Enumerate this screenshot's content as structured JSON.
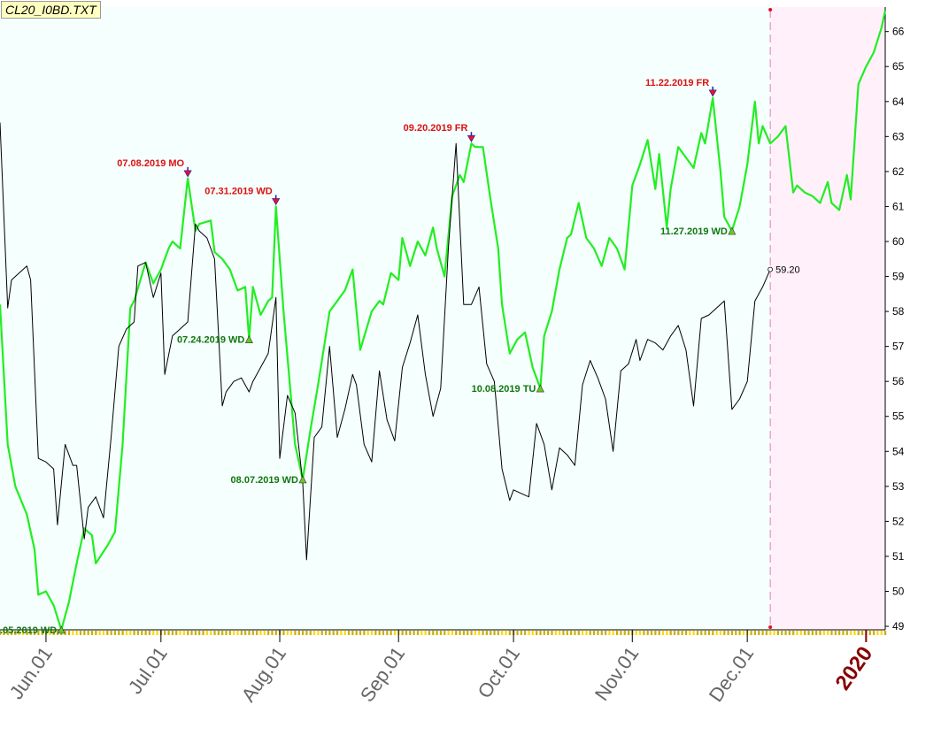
{
  "window": {
    "file_label": "CL20_I0BD.TXT"
  },
  "colors": {
    "plot_bg": "#f5fffd",
    "future_bg": "#fff0fa",
    "primary_line": "#22ee22",
    "secondary_line": "#000000",
    "high_marker": "#ee1122",
    "low_marker": "#66cc22",
    "high_label": "#dd1111",
    "low_label": "#117711",
    "year_label": "#880000"
  },
  "chart_data": {
    "type": "line",
    "y_axis": {
      "ylim": [
        48.9,
        66.7
      ],
      "ticks": [
        49,
        50,
        51,
        52,
        53,
        54,
        55,
        56,
        57,
        58,
        59,
        60,
        61,
        62,
        63,
        64,
        65,
        66
      ],
      "position": "right"
    },
    "x_axis": {
      "ticks": [
        "Jun.01",
        "Jul.01",
        "Aug.01",
        "Sep.01",
        "Oct.01",
        "Nov.01",
        "Dec.01",
        "2020"
      ],
      "tick_dates": [
        "2019-06-01",
        "2019-07-01",
        "2019-08-01",
        "2019-09-01",
        "2019-10-01",
        "2019-11-01",
        "2019-12-01",
        "2020-01-01"
      ],
      "highlight_tick": "2020"
    },
    "grid": false,
    "future_region_start": "2019-12-07",
    "series": [
      {
        "role": "primary",
        "points": [
          [
            "2019-05-20",
            58.2
          ],
          [
            "2019-05-22",
            54.2
          ],
          [
            "2019-05-24",
            53.0
          ],
          [
            "2019-05-27",
            52.2
          ],
          [
            "2019-05-29",
            51.2
          ],
          [
            "2019-05-30",
            49.9
          ],
          [
            "2019-06-01",
            50.0
          ],
          [
            "2019-06-03",
            49.6
          ],
          [
            "2019-06-05",
            48.9
          ],
          [
            "2019-06-07",
            49.7
          ],
          [
            "2019-06-09",
            50.8
          ],
          [
            "2019-06-11",
            51.8
          ],
          [
            "2019-06-13",
            51.6
          ],
          [
            "2019-06-14",
            50.8
          ],
          [
            "2019-06-17",
            51.3
          ],
          [
            "2019-06-19",
            51.7
          ],
          [
            "2019-06-21",
            54.2
          ],
          [
            "2019-06-23",
            58.1
          ],
          [
            "2019-06-24",
            58.3
          ],
          [
            "2019-06-27",
            59.4
          ],
          [
            "2019-06-29",
            58.8
          ],
          [
            "2019-07-01",
            59.2
          ],
          [
            "2019-07-03",
            59.8
          ],
          [
            "2019-07-04",
            60.0
          ],
          [
            "2019-07-06",
            59.8
          ],
          [
            "2019-07-08",
            61.8
          ],
          [
            "2019-07-10",
            60.3
          ],
          [
            "2019-07-11",
            60.5
          ],
          [
            "2019-07-14",
            60.6
          ],
          [
            "2019-07-15",
            59.7
          ],
          [
            "2019-07-17",
            59.5
          ],
          [
            "2019-07-19",
            59.2
          ],
          [
            "2019-07-21",
            58.6
          ],
          [
            "2019-07-23",
            58.7
          ],
          [
            "2019-07-24",
            57.2
          ],
          [
            "2019-07-25",
            58.7
          ],
          [
            "2019-07-27",
            57.9
          ],
          [
            "2019-07-29",
            58.3
          ],
          [
            "2019-07-30",
            58.4
          ],
          [
            "2019-07-31",
            61.0
          ],
          [
            "2019-08-02",
            58.0
          ],
          [
            "2019-08-05",
            54.2
          ],
          [
            "2019-08-07",
            53.2
          ],
          [
            "2019-08-09",
            54.6
          ],
          [
            "2019-08-11",
            55.9
          ],
          [
            "2019-08-13",
            57.3
          ],
          [
            "2019-08-14",
            58.0
          ],
          [
            "2019-08-16",
            58.3
          ],
          [
            "2019-08-18",
            58.6
          ],
          [
            "2019-08-20",
            59.2
          ],
          [
            "2019-08-22",
            56.9
          ],
          [
            "2019-08-25",
            58.0
          ],
          [
            "2019-08-27",
            58.3
          ],
          [
            "2019-08-28",
            58.2
          ],
          [
            "2019-08-30",
            59.1
          ],
          [
            "2019-09-01",
            58.9
          ],
          [
            "2019-09-02",
            60.1
          ],
          [
            "2019-09-04",
            59.3
          ],
          [
            "2019-09-06",
            60.0
          ],
          [
            "2019-09-08",
            59.6
          ],
          [
            "2019-09-10",
            60.4
          ],
          [
            "2019-09-11",
            59.8
          ],
          [
            "2019-09-13",
            59.0
          ],
          [
            "2019-09-15",
            61.3
          ],
          [
            "2019-09-17",
            61.9
          ],
          [
            "2019-09-18",
            61.7
          ],
          [
            "2019-09-20",
            62.8
          ],
          [
            "2019-09-21",
            62.7
          ],
          [
            "2019-09-23",
            62.7
          ],
          [
            "2019-09-25",
            61.2
          ],
          [
            "2019-09-27",
            59.8
          ],
          [
            "2019-09-28",
            58.2
          ],
          [
            "2019-09-30",
            56.8
          ],
          [
            "2019-10-02",
            57.2
          ],
          [
            "2019-10-04",
            57.4
          ],
          [
            "2019-10-06",
            56.4
          ],
          [
            "2019-10-08",
            55.8
          ],
          [
            "2019-10-09",
            57.3
          ],
          [
            "2019-10-11",
            58.0
          ],
          [
            "2019-10-13",
            59.2
          ],
          [
            "2019-10-15",
            60.1
          ],
          [
            "2019-10-16",
            60.2
          ],
          [
            "2019-10-18",
            61.1
          ],
          [
            "2019-10-20",
            60.1
          ],
          [
            "2019-10-22",
            59.8
          ],
          [
            "2019-10-24",
            59.3
          ],
          [
            "2019-10-26",
            60.1
          ],
          [
            "2019-10-28",
            59.8
          ],
          [
            "2019-10-30",
            59.2
          ],
          [
            "2019-11-01",
            61.6
          ],
          [
            "2019-11-03",
            62.2
          ],
          [
            "2019-11-05",
            62.9
          ],
          [
            "2019-11-07",
            61.5
          ],
          [
            "2019-11-08",
            62.5
          ],
          [
            "2019-11-10",
            60.4
          ],
          [
            "2019-11-11",
            61.5
          ],
          [
            "2019-11-13",
            62.7
          ],
          [
            "2019-11-15",
            62.4
          ],
          [
            "2019-11-17",
            62.1
          ],
          [
            "2019-11-19",
            63.1
          ],
          [
            "2019-11-20",
            62.8
          ],
          [
            "2019-11-22",
            64.1
          ],
          [
            "2019-11-24",
            62.0
          ],
          [
            "2019-11-25",
            60.7
          ],
          [
            "2019-11-27",
            60.3
          ],
          [
            "2019-11-29",
            61.0
          ],
          [
            "2019-12-01",
            62.2
          ],
          [
            "2019-12-03",
            64.0
          ],
          [
            "2019-12-04",
            62.8
          ],
          [
            "2019-12-05",
            63.3
          ],
          [
            "2019-12-07",
            62.8
          ],
          [
            "2019-12-09",
            63.0
          ],
          [
            "2019-12-11",
            63.3
          ],
          [
            "2019-12-13",
            61.4
          ],
          [
            "2019-12-14",
            61.6
          ],
          [
            "2019-12-16",
            61.4
          ],
          [
            "2019-12-18",
            61.3
          ],
          [
            "2019-12-20",
            61.1
          ],
          [
            "2019-12-22",
            61.7
          ],
          [
            "2019-12-23",
            61.1
          ],
          [
            "2019-12-25",
            60.9
          ],
          [
            "2019-12-27",
            61.9
          ],
          [
            "2019-12-28",
            61.2
          ],
          [
            "2019-12-30",
            64.5
          ],
          [
            "2020-01-01",
            65.0
          ],
          [
            "2020-01-03",
            65.4
          ],
          [
            "2020-01-05",
            66.1
          ],
          [
            "2020-01-06",
            66.6
          ]
        ]
      },
      {
        "role": "secondary",
        "points": [
          [
            "2019-05-20",
            63.4
          ],
          [
            "2019-05-22",
            58.1
          ],
          [
            "2019-05-23",
            58.9
          ],
          [
            "2019-05-25",
            59.1
          ],
          [
            "2019-05-27",
            59.3
          ],
          [
            "2019-05-28",
            58.9
          ],
          [
            "2019-05-30",
            53.8
          ],
          [
            "2019-06-01",
            53.7
          ],
          [
            "2019-06-03",
            53.5
          ],
          [
            "2019-06-04",
            51.9
          ],
          [
            "2019-06-06",
            54.2
          ],
          [
            "2019-06-08",
            53.6
          ],
          [
            "2019-06-09",
            53.6
          ],
          [
            "2019-06-11",
            51.5
          ],
          [
            "2019-06-12",
            52.4
          ],
          [
            "2019-06-14",
            52.7
          ],
          [
            "2019-06-16",
            52.1
          ],
          [
            "2019-06-18",
            54.4
          ],
          [
            "2019-06-20",
            57.0
          ],
          [
            "2019-06-22",
            57.5
          ],
          [
            "2019-06-24",
            57.7
          ],
          [
            "2019-06-25",
            59.3
          ],
          [
            "2019-06-27",
            59.4
          ],
          [
            "2019-06-29",
            58.4
          ],
          [
            "2019-07-01",
            59.1
          ],
          [
            "2019-07-02",
            56.2
          ],
          [
            "2019-07-04",
            57.3
          ],
          [
            "2019-07-06",
            57.5
          ],
          [
            "2019-07-08",
            57.7
          ],
          [
            "2019-07-10",
            60.5
          ],
          [
            "2019-07-11",
            60.3
          ],
          [
            "2019-07-13",
            60.1
          ],
          [
            "2019-07-15",
            59.5
          ],
          [
            "2019-07-17",
            55.3
          ],
          [
            "2019-07-18",
            55.7
          ],
          [
            "2019-07-20",
            56.0
          ],
          [
            "2019-07-22",
            56.1
          ],
          [
            "2019-07-24",
            55.7
          ],
          [
            "2019-07-25",
            56.0
          ],
          [
            "2019-07-27",
            56.4
          ],
          [
            "2019-07-29",
            56.8
          ],
          [
            "2019-07-31",
            58.4
          ],
          [
            "2019-08-01",
            53.8
          ],
          [
            "2019-08-03",
            55.6
          ],
          [
            "2019-08-05",
            55.1
          ],
          [
            "2019-08-07",
            53.1
          ],
          [
            "2019-08-08",
            50.9
          ],
          [
            "2019-08-10",
            54.4
          ],
          [
            "2019-08-12",
            54.7
          ],
          [
            "2019-08-14",
            57.0
          ],
          [
            "2019-08-16",
            54.4
          ],
          [
            "2019-08-18",
            55.2
          ],
          [
            "2019-08-20",
            56.2
          ],
          [
            "2019-08-21",
            55.9
          ],
          [
            "2019-08-23",
            54.2
          ],
          [
            "2019-08-25",
            53.7
          ],
          [
            "2019-08-27",
            56.3
          ],
          [
            "2019-08-29",
            54.9
          ],
          [
            "2019-08-31",
            54.3
          ],
          [
            "2019-09-02",
            56.4
          ],
          [
            "2019-09-04",
            57.1
          ],
          [
            "2019-09-06",
            57.9
          ],
          [
            "2019-09-08",
            56.2
          ],
          [
            "2019-09-10",
            55.0
          ],
          [
            "2019-09-12",
            55.8
          ],
          [
            "2019-09-14",
            59.8
          ],
          [
            "2019-09-16",
            62.8
          ],
          [
            "2019-09-18",
            58.2
          ],
          [
            "2019-09-20",
            58.2
          ],
          [
            "2019-09-22",
            58.7
          ],
          [
            "2019-09-24",
            56.5
          ],
          [
            "2019-09-26",
            56.0
          ],
          [
            "2019-09-28",
            53.5
          ],
          [
            "2019-09-30",
            52.6
          ],
          [
            "2019-10-01",
            52.9
          ],
          [
            "2019-10-03",
            52.8
          ],
          [
            "2019-10-05",
            52.7
          ],
          [
            "2019-10-07",
            54.8
          ],
          [
            "2019-10-09",
            54.2
          ],
          [
            "2019-10-11",
            52.9
          ],
          [
            "2019-10-13",
            54.1
          ],
          [
            "2019-10-15",
            53.9
          ],
          [
            "2019-10-17",
            53.6
          ],
          [
            "2019-10-19",
            55.9
          ],
          [
            "2019-10-21",
            56.6
          ],
          [
            "2019-10-23",
            56.1
          ],
          [
            "2019-10-25",
            55.5
          ],
          [
            "2019-10-27",
            54.0
          ],
          [
            "2019-10-29",
            56.3
          ],
          [
            "2019-10-31",
            56.5
          ],
          [
            "2019-11-02",
            57.2
          ],
          [
            "2019-11-03",
            56.6
          ],
          [
            "2019-11-05",
            57.2
          ],
          [
            "2019-11-07",
            57.1
          ],
          [
            "2019-11-09",
            56.9
          ],
          [
            "2019-11-11",
            57.3
          ],
          [
            "2019-11-13",
            57.6
          ],
          [
            "2019-11-15",
            56.9
          ],
          [
            "2019-11-17",
            55.3
          ],
          [
            "2019-11-19",
            57.8
          ],
          [
            "2019-11-21",
            57.9
          ],
          [
            "2019-11-23",
            58.1
          ],
          [
            "2019-11-25",
            58.3
          ],
          [
            "2019-11-27",
            55.2
          ],
          [
            "2019-11-29",
            55.5
          ],
          [
            "2019-12-01",
            56.0
          ],
          [
            "2019-12-03",
            58.3
          ],
          [
            "2019-12-05",
            58.7
          ],
          [
            "2019-12-07",
            59.2
          ]
        ]
      }
    ],
    "last_value": {
      "date": "2019-12-07",
      "value": 59.2,
      "label": "59.20"
    },
    "annotations": [
      {
        "kind": "low",
        "date": "2019-06-05",
        "value": 48.9,
        "label": ".05.2019 WD"
      },
      {
        "kind": "high",
        "date": "2019-07-08",
        "value": 61.8,
        "label": "07.08.2019 MO"
      },
      {
        "kind": "low",
        "date": "2019-07-24",
        "value": 57.2,
        "label": "07.24.2019 WD"
      },
      {
        "kind": "high",
        "date": "2019-07-31",
        "value": 61.0,
        "label": "07.31.2019 WD"
      },
      {
        "kind": "low",
        "date": "2019-08-07",
        "value": 53.2,
        "label": "08.07.2019 WD"
      },
      {
        "kind": "high",
        "date": "2019-09-20",
        "value": 62.8,
        "label": "09.20.2019 FR"
      },
      {
        "kind": "low",
        "date": "2019-10-08",
        "value": 55.8,
        "label": "10.08.2019 TU"
      },
      {
        "kind": "high",
        "date": "2019-11-22",
        "value": 64.1,
        "label": "11.22.2019 FR"
      },
      {
        "kind": "low",
        "date": "2019-11-27",
        "value": 60.3,
        "label": "11.27.2019 WD"
      }
    ]
  }
}
